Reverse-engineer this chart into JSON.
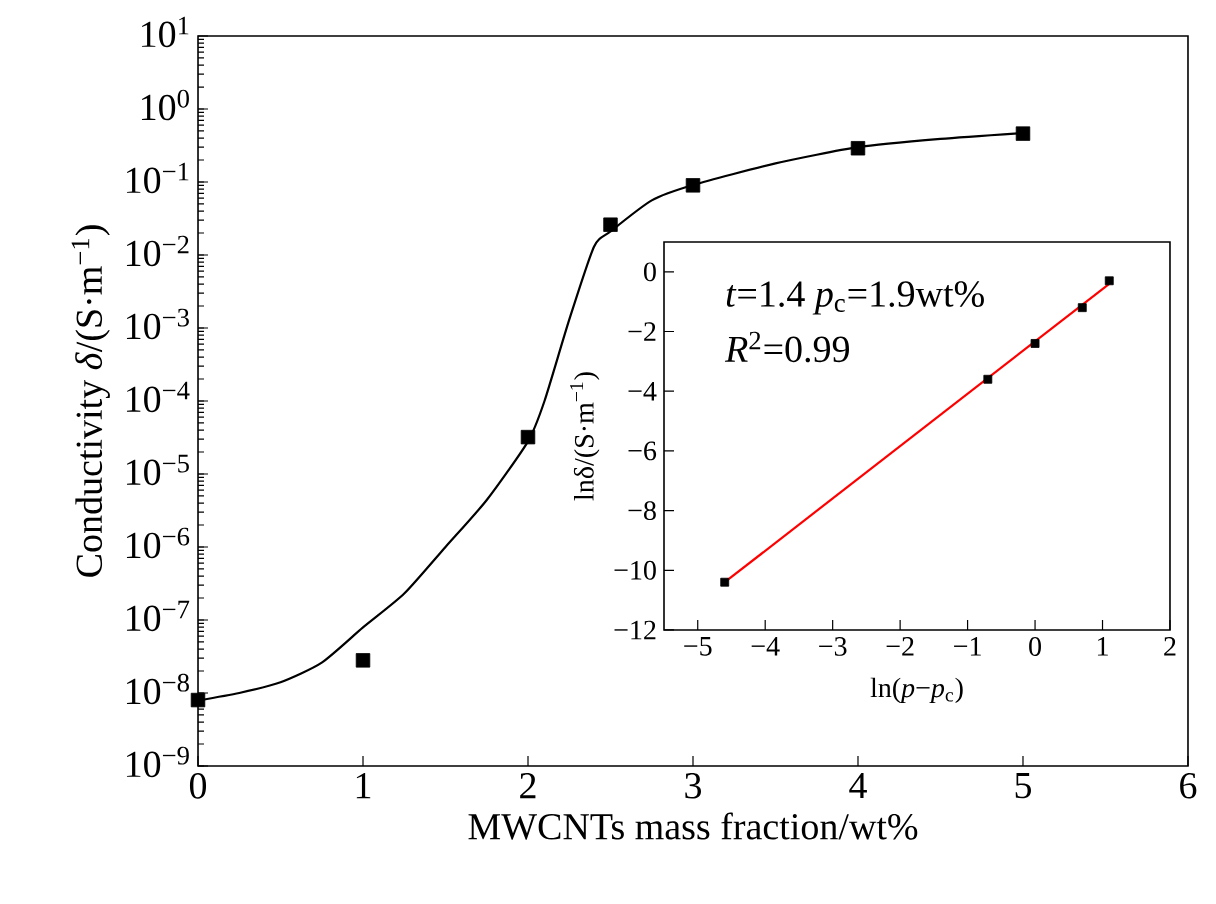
{
  "chart_data": [
    {
      "type": "scatter",
      "xlabel": "MWCNTs mass fraction/wt%",
      "ylabel": "Conductivity *δ*/(S·m$^{−1}$)",
      "log": "y",
      "marker": "square",
      "xlim": [
        0,
        6
      ],
      "xticks": [
        0,
        1,
        2,
        3,
        4,
        5,
        6
      ],
      "ylim": [
        1e-09,
        10
      ],
      "yticks": [
        {
          "value": 1e-09,
          "label": "10$^{−9}$"
        },
        {
          "value": 1e-08,
          "label": "10$^{−8}$"
        },
        {
          "value": 1e-07,
          "label": "10$^{−7}$"
        },
        {
          "value": 1e-06,
          "label": "10$^{−6}$"
        },
        {
          "value": 1e-05,
          "label": "10$^{−5}$"
        },
        {
          "value": 0.0001,
          "label": "10$^{−4}$"
        },
        {
          "value": 0.001,
          "label": "10$^{−3}$"
        },
        {
          "value": 0.01,
          "label": "10$^{−2}$"
        },
        {
          "value": 0.1,
          "label": "10$^{−1}$"
        },
        {
          "value": 1,
          "label": "10$^{0}$"
        },
        {
          "value": 10,
          "label": "10$^{1}$"
        }
      ],
      "series": [
        {
          "type": "line",
          "marker": "none",
          "color": "#000000",
          "x": [
            0,
            0.25,
            0.5,
            0.75,
            1,
            1.25,
            1.5,
            1.75,
            2,
            2.1,
            2.25,
            2.4,
            2.5,
            2.75,
            3,
            3.5,
            4,
            4.5,
            5
          ],
          "values": [
            7.9e-09,
            1e-08,
            1.4e-08,
            2.6e-08,
            7.9e-08,
            2.3e-07,
            1e-06,
            4.4e-06,
            2.8e-05,
            0.0001,
            0.0013,
            0.013,
            0.021,
            0.056,
            0.091,
            0.18,
            0.3,
            0.39,
            0.47
          ]
        },
        {
          "color": "#000000",
          "x": [
            0,
            1,
            2,
            2.5,
            3,
            4,
            5
          ],
          "values": [
            8e-09,
            2.8e-08,
            3.2e-05,
            0.026,
            0.09,
            0.29,
            0.46
          ]
        }
      ]
    },
    {
      "type": "scatter",
      "xlabel": "ln(*p*−*p*$_{c}$)",
      "ylabel": "lnδ/(S·m$^{−1}$)",
      "marker": "square",
      "annotations": [
        "*t*=1.4 *p*$_{c}$=1.9wt%",
        "*R*$^{2}$=0.99"
      ],
      "xlim": [
        -5.5,
        2
      ],
      "xticks": [
        {
          "value": -5,
          "label": "−5"
        },
        {
          "value": -4,
          "label": "−4"
        },
        {
          "value": -3,
          "label": "−3"
        },
        {
          "value": -2,
          "label": "−2"
        },
        {
          "value": -1,
          "label": "−1"
        },
        0,
        1,
        2
      ],
      "ylim": [
        -12,
        1
      ],
      "yticks": [
        {
          "value": -12,
          "label": "−12"
        },
        {
          "value": -10,
          "label": "−10"
        },
        {
          "value": -8,
          "label": "−8"
        },
        {
          "value": -6,
          "label": "−6"
        },
        {
          "value": -4,
          "label": "−4"
        },
        {
          "value": -2,
          "label": "−2"
        },
        0
      ],
      "series": [
        {
          "type": "line",
          "marker": "none",
          "color": "#ff0000",
          "x": [
            -4.6,
            1.1
          ],
          "values": [
            -10.4,
            -0.4
          ]
        },
        {
          "color": "#000000",
          "x": [
            -4.6,
            -0.7,
            0,
            0.7,
            1.1
          ],
          "values": [
            -10.4,
            -3.6,
            -2.4,
            -1.2,
            -0.3
          ]
        }
      ]
    }
  ]
}
